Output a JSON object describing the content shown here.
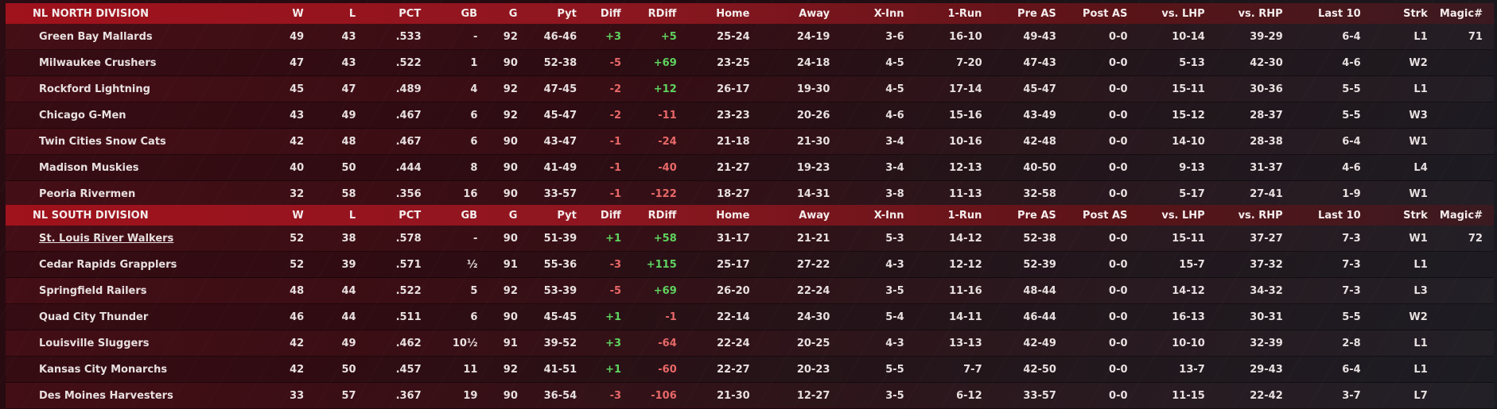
{
  "columns": [
    "W",
    "L",
    "PCT",
    "GB",
    "G",
    "Pyt",
    "Diff",
    "RDiff",
    "Home",
    "Away",
    "X-Inn",
    "1-Run",
    "Pre AS",
    "Post AS",
    "vs. LHP",
    "vs. RHP",
    "Last 10",
    "Strk",
    "Magic#"
  ],
  "north": {
    "title": "NL NORTH DIVISION",
    "teams": [
      {
        "name": "Green Bay  Mallards",
        "w": "49",
        "l": "43",
        "pct": ".533",
        "gb": "-",
        "g": "92",
        "pyt": "46-46",
        "diff": "+3",
        "rdiff": "+5",
        "home": "25-24",
        "away": "24-19",
        "xinn": "3-6",
        "onerun": "16-10",
        "preas": "49-43",
        "postas": "0-0",
        "lhp": "10-14",
        "rhp": "39-29",
        "last10": "6-4",
        "strk": "L1",
        "magic": "71"
      },
      {
        "name": "Milwaukee Crushers",
        "w": "47",
        "l": "43",
        "pct": ".522",
        "gb": "1",
        "g": "90",
        "pyt": "52-38",
        "diff": "-5",
        "rdiff": "+69",
        "home": "23-25",
        "away": "24-18",
        "xinn": "4-5",
        "onerun": "7-20",
        "preas": "47-43",
        "postas": "0-0",
        "lhp": "5-13",
        "rhp": "42-30",
        "last10": "4-6",
        "strk": "W2",
        "magic": ""
      },
      {
        "name": "Rockford Lightning",
        "w": "45",
        "l": "47",
        "pct": ".489",
        "gb": "4",
        "g": "92",
        "pyt": "47-45",
        "diff": "-2",
        "rdiff": "+12",
        "home": "26-17",
        "away": "19-30",
        "xinn": "4-5",
        "onerun": "17-14",
        "preas": "45-47",
        "postas": "0-0",
        "lhp": "15-11",
        "rhp": "30-36",
        "last10": "5-5",
        "strk": "L1",
        "magic": ""
      },
      {
        "name": "Chicago G-Men",
        "w": "43",
        "l": "49",
        "pct": ".467",
        "gb": "6",
        "g": "92",
        "pyt": "45-47",
        "diff": "-2",
        "rdiff": "-11",
        "home": "23-23",
        "away": "20-26",
        "xinn": "4-6",
        "onerun": "15-16",
        "preas": "43-49",
        "postas": "0-0",
        "lhp": "15-12",
        "rhp": "28-37",
        "last10": "5-5",
        "strk": "W3",
        "magic": ""
      },
      {
        "name": "Twin Cities Snow Cats",
        "w": "42",
        "l": "48",
        "pct": ".467",
        "gb": "6",
        "g": "90",
        "pyt": "43-47",
        "diff": "-1",
        "rdiff": "-24",
        "home": "21-18",
        "away": "21-30",
        "xinn": "3-4",
        "onerun": "10-16",
        "preas": "42-48",
        "postas": "0-0",
        "lhp": "14-10",
        "rhp": "28-38",
        "last10": "6-4",
        "strk": "W1",
        "magic": ""
      },
      {
        "name": "Madison Muskies",
        "w": "40",
        "l": "50",
        "pct": ".444",
        "gb": "8",
        "g": "90",
        "pyt": "41-49",
        "diff": "-1",
        "rdiff": "-40",
        "home": "21-27",
        "away": "19-23",
        "xinn": "3-4",
        "onerun": "12-13",
        "preas": "40-50",
        "postas": "0-0",
        "lhp": "9-13",
        "rhp": "31-37",
        "last10": "4-6",
        "strk": "L4",
        "magic": ""
      },
      {
        "name": "Peoria Rivermen",
        "w": "32",
        "l": "58",
        "pct": ".356",
        "gb": "16",
        "g": "90",
        "pyt": "33-57",
        "diff": "-1",
        "rdiff": "-122",
        "home": "18-27",
        "away": "14-31",
        "xinn": "3-8",
        "onerun": "11-13",
        "preas": "32-58",
        "postas": "0-0",
        "lhp": "5-17",
        "rhp": "27-41",
        "last10": "1-9",
        "strk": "W1",
        "magic": ""
      }
    ]
  },
  "south": {
    "title": "NL SOUTH DIVISION",
    "teams": [
      {
        "name": "St. Louis River Walkers",
        "w": "52",
        "l": "38",
        "pct": ".578",
        "gb": "-",
        "g": "90",
        "pyt": "51-39",
        "diff": "+1",
        "rdiff": "+58",
        "home": "31-17",
        "away": "21-21",
        "xinn": "5-3",
        "onerun": "14-12",
        "preas": "52-38",
        "postas": "0-0",
        "lhp": "15-11",
        "rhp": "37-27",
        "last10": "7-3",
        "strk": "W1",
        "magic": "72"
      },
      {
        "name": "Cedar Rapids Grapplers",
        "w": "52",
        "l": "39",
        "pct": ".571",
        "gb": "½",
        "g": "91",
        "pyt": "55-36",
        "diff": "-3",
        "rdiff": "+115",
        "home": "25-17",
        "away": "27-22",
        "xinn": "4-3",
        "onerun": "12-12",
        "preas": "52-39",
        "postas": "0-0",
        "lhp": "15-7",
        "rhp": "37-32",
        "last10": "7-3",
        "strk": "L1",
        "magic": ""
      },
      {
        "name": "Springfield Railers",
        "w": "48",
        "l": "44",
        "pct": ".522",
        "gb": "5",
        "g": "92",
        "pyt": "53-39",
        "diff": "-5",
        "rdiff": "+69",
        "home": "26-20",
        "away": "22-24",
        "xinn": "3-5",
        "onerun": "11-16",
        "preas": "48-44",
        "postas": "0-0",
        "lhp": "14-12",
        "rhp": "34-32",
        "last10": "7-3",
        "strk": "L3",
        "magic": ""
      },
      {
        "name": "Quad City Thunder",
        "w": "46",
        "l": "44",
        "pct": ".511",
        "gb": "6",
        "g": "90",
        "pyt": "45-45",
        "diff": "+1",
        "rdiff": "-1",
        "home": "22-14",
        "away": "24-30",
        "xinn": "5-4",
        "onerun": "14-11",
        "preas": "46-44",
        "postas": "0-0",
        "lhp": "16-13",
        "rhp": "30-31",
        "last10": "5-5",
        "strk": "W2",
        "magic": ""
      },
      {
        "name": "Louisville Sluggers",
        "w": "42",
        "l": "49",
        "pct": ".462",
        "gb": "10½",
        "g": "91",
        "pyt": "39-52",
        "diff": "+3",
        "rdiff": "-64",
        "home": "22-24",
        "away": "20-25",
        "xinn": "4-3",
        "onerun": "13-13",
        "preas": "42-49",
        "postas": "0-0",
        "lhp": "10-10",
        "rhp": "32-39",
        "last10": "2-8",
        "strk": "L1",
        "magic": ""
      },
      {
        "name": "Kansas City Monarchs",
        "w": "42",
        "l": "50",
        "pct": ".457",
        "gb": "11",
        "g": "92",
        "pyt": "41-51",
        "diff": "+1",
        "rdiff": "-60",
        "home": "22-27",
        "away": "20-23",
        "xinn": "5-5",
        "onerun": "7-7",
        "preas": "42-50",
        "postas": "0-0",
        "lhp": "13-7",
        "rhp": "29-43",
        "last10": "6-4",
        "strk": "L1",
        "magic": ""
      },
      {
        "name": "Des Moines Harvesters",
        "w": "33",
        "l": "57",
        "pct": ".367",
        "gb": "19",
        "g": "90",
        "pyt": "36-54",
        "diff": "-3",
        "rdiff": "-106",
        "home": "21-30",
        "away": "12-27",
        "xinn": "3-5",
        "onerun": "6-12",
        "preas": "33-57",
        "postas": "0-0",
        "lhp": "11-15",
        "rhp": "22-42",
        "last10": "3-7",
        "strk": "L7",
        "magic": ""
      }
    ]
  }
}
